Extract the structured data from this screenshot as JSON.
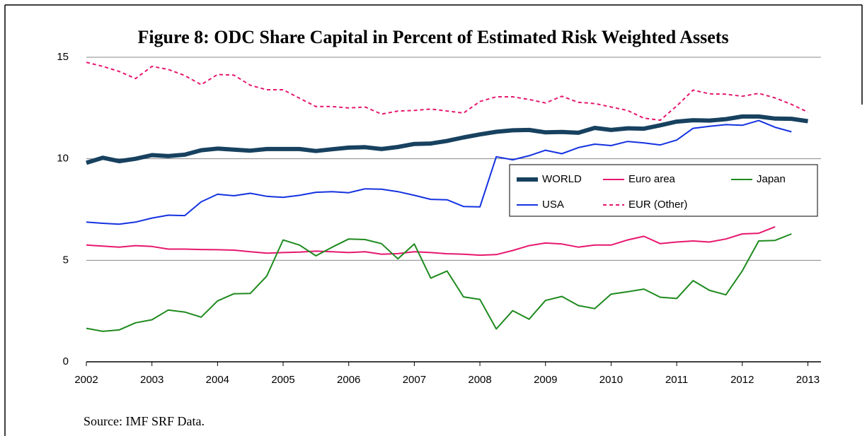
{
  "chart_data": {
    "type": "line",
    "title": "Figure 8: ODC Share Capital in Percent of Estimated Risk Weighted Assets",
    "source": "Source: IMF SRF Data.",
    "x": [
      2002,
      2002.25,
      2002.5,
      2002.75,
      2003,
      2003.25,
      2003.5,
      2003.75,
      2004,
      2004.25,
      2004.5,
      2004.75,
      2005,
      2005.25,
      2005.5,
      2005.75,
      2006,
      2006.25,
      2006.5,
      2006.75,
      2007,
      2007.25,
      2007.5,
      2007.75,
      2008,
      2008.25,
      2008.5,
      2008.75,
      2009,
      2009.25,
      2009.5,
      2009.75,
      2010,
      2010.25,
      2010.5,
      2010.75,
      2011,
      2011.25,
      2011.5,
      2011.75,
      2012,
      2012.25,
      2012.5,
      2012.75,
      2013
    ],
    "xlim": [
      2002,
      2013.2
    ],
    "xticks": [
      2002,
      2003,
      2004,
      2005,
      2006,
      2007,
      2008,
      2009,
      2010,
      2011,
      2012,
      2013
    ],
    "ylim": [
      0,
      15
    ],
    "yticks": [
      0,
      5,
      10,
      15
    ],
    "grid": true,
    "series": [
      {
        "name": "WORLD",
        "color": "#17415f",
        "width": 6,
        "dashed": false,
        "values": [
          9.8,
          10.05,
          9.88,
          10.0,
          10.18,
          10.13,
          10.2,
          10.42,
          10.5,
          10.45,
          10.4,
          10.48,
          10.48,
          10.48,
          10.38,
          10.47,
          10.55,
          10.57,
          10.48,
          10.58,
          10.73,
          10.75,
          10.88,
          11.05,
          11.2,
          11.33,
          11.4,
          11.42,
          11.3,
          11.32,
          11.28,
          11.52,
          11.42,
          11.5,
          11.48,
          11.65,
          11.83,
          11.9,
          11.88,
          11.95,
          12.08,
          12.08,
          11.98,
          11.97,
          11.85
        ]
      },
      {
        "name": "Euro area",
        "color": "#e6176f",
        "width": 2,
        "dashed": false,
        "values": [
          5.75,
          5.7,
          5.65,
          5.72,
          5.68,
          5.55,
          5.55,
          5.53,
          5.52,
          5.5,
          5.42,
          5.35,
          5.38,
          5.4,
          5.45,
          5.42,
          5.38,
          5.42,
          5.3,
          5.33,
          5.42,
          5.38,
          5.32,
          5.3,
          5.25,
          5.28,
          5.48,
          5.72,
          5.85,
          5.8,
          5.65,
          5.75,
          5.75,
          6.0,
          6.18,
          5.82,
          5.9,
          5.95,
          5.9,
          6.05,
          6.3,
          6.33,
          6.65,
          null,
          null
        ]
      },
      {
        "name": "Japan",
        "color": "#1e8a1e",
        "width": 2,
        "dashed": false,
        "values": [
          1.65,
          1.5,
          1.57,
          1.92,
          2.07,
          2.55,
          2.45,
          2.2,
          3.0,
          3.35,
          3.37,
          4.22,
          6.0,
          5.75,
          5.22,
          5.65,
          6.05,
          6.02,
          5.82,
          5.07,
          5.8,
          4.12,
          4.47,
          3.2,
          3.07,
          1.62,
          2.52,
          2.1,
          3.02,
          3.22,
          2.77,
          2.62,
          3.33,
          3.45,
          3.58,
          3.18,
          3.12,
          4.0,
          3.52,
          3.3,
          4.48,
          5.95,
          5.98,
          6.3,
          null
        ]
      },
      {
        "name": "USA",
        "color": "#1432e0",
        "width": 2,
        "dashed": false,
        "values": [
          6.88,
          6.82,
          6.78,
          6.88,
          7.08,
          7.22,
          7.2,
          7.88,
          8.25,
          8.18,
          8.3,
          8.15,
          8.1,
          8.2,
          8.35,
          8.38,
          8.33,
          8.52,
          8.5,
          8.38,
          8.2,
          8.0,
          7.98,
          7.65,
          7.63,
          10.1,
          9.95,
          10.15,
          10.42,
          10.25,
          10.55,
          10.72,
          10.65,
          10.85,
          10.78,
          10.68,
          10.92,
          11.5,
          11.6,
          11.68,
          11.65,
          11.88,
          11.55,
          11.33,
          null
        ]
      },
      {
        "name": "EUR (Other)",
        "color": "#e6176f",
        "width": 2,
        "dashed": true,
        "values": [
          14.75,
          14.55,
          14.3,
          13.95,
          14.55,
          14.4,
          14.1,
          13.65,
          14.15,
          14.12,
          13.62,
          13.4,
          13.4,
          12.98,
          12.57,
          12.57,
          12.5,
          12.55,
          12.2,
          12.35,
          12.38,
          12.45,
          12.35,
          12.25,
          12.82,
          13.05,
          13.05,
          12.92,
          12.75,
          13.08,
          12.78,
          12.72,
          12.55,
          12.38,
          12.0,
          11.9,
          12.6,
          13.38,
          13.2,
          13.18,
          13.08,
          13.22,
          13.0,
          12.68,
          12.3
        ]
      }
    ]
  }
}
